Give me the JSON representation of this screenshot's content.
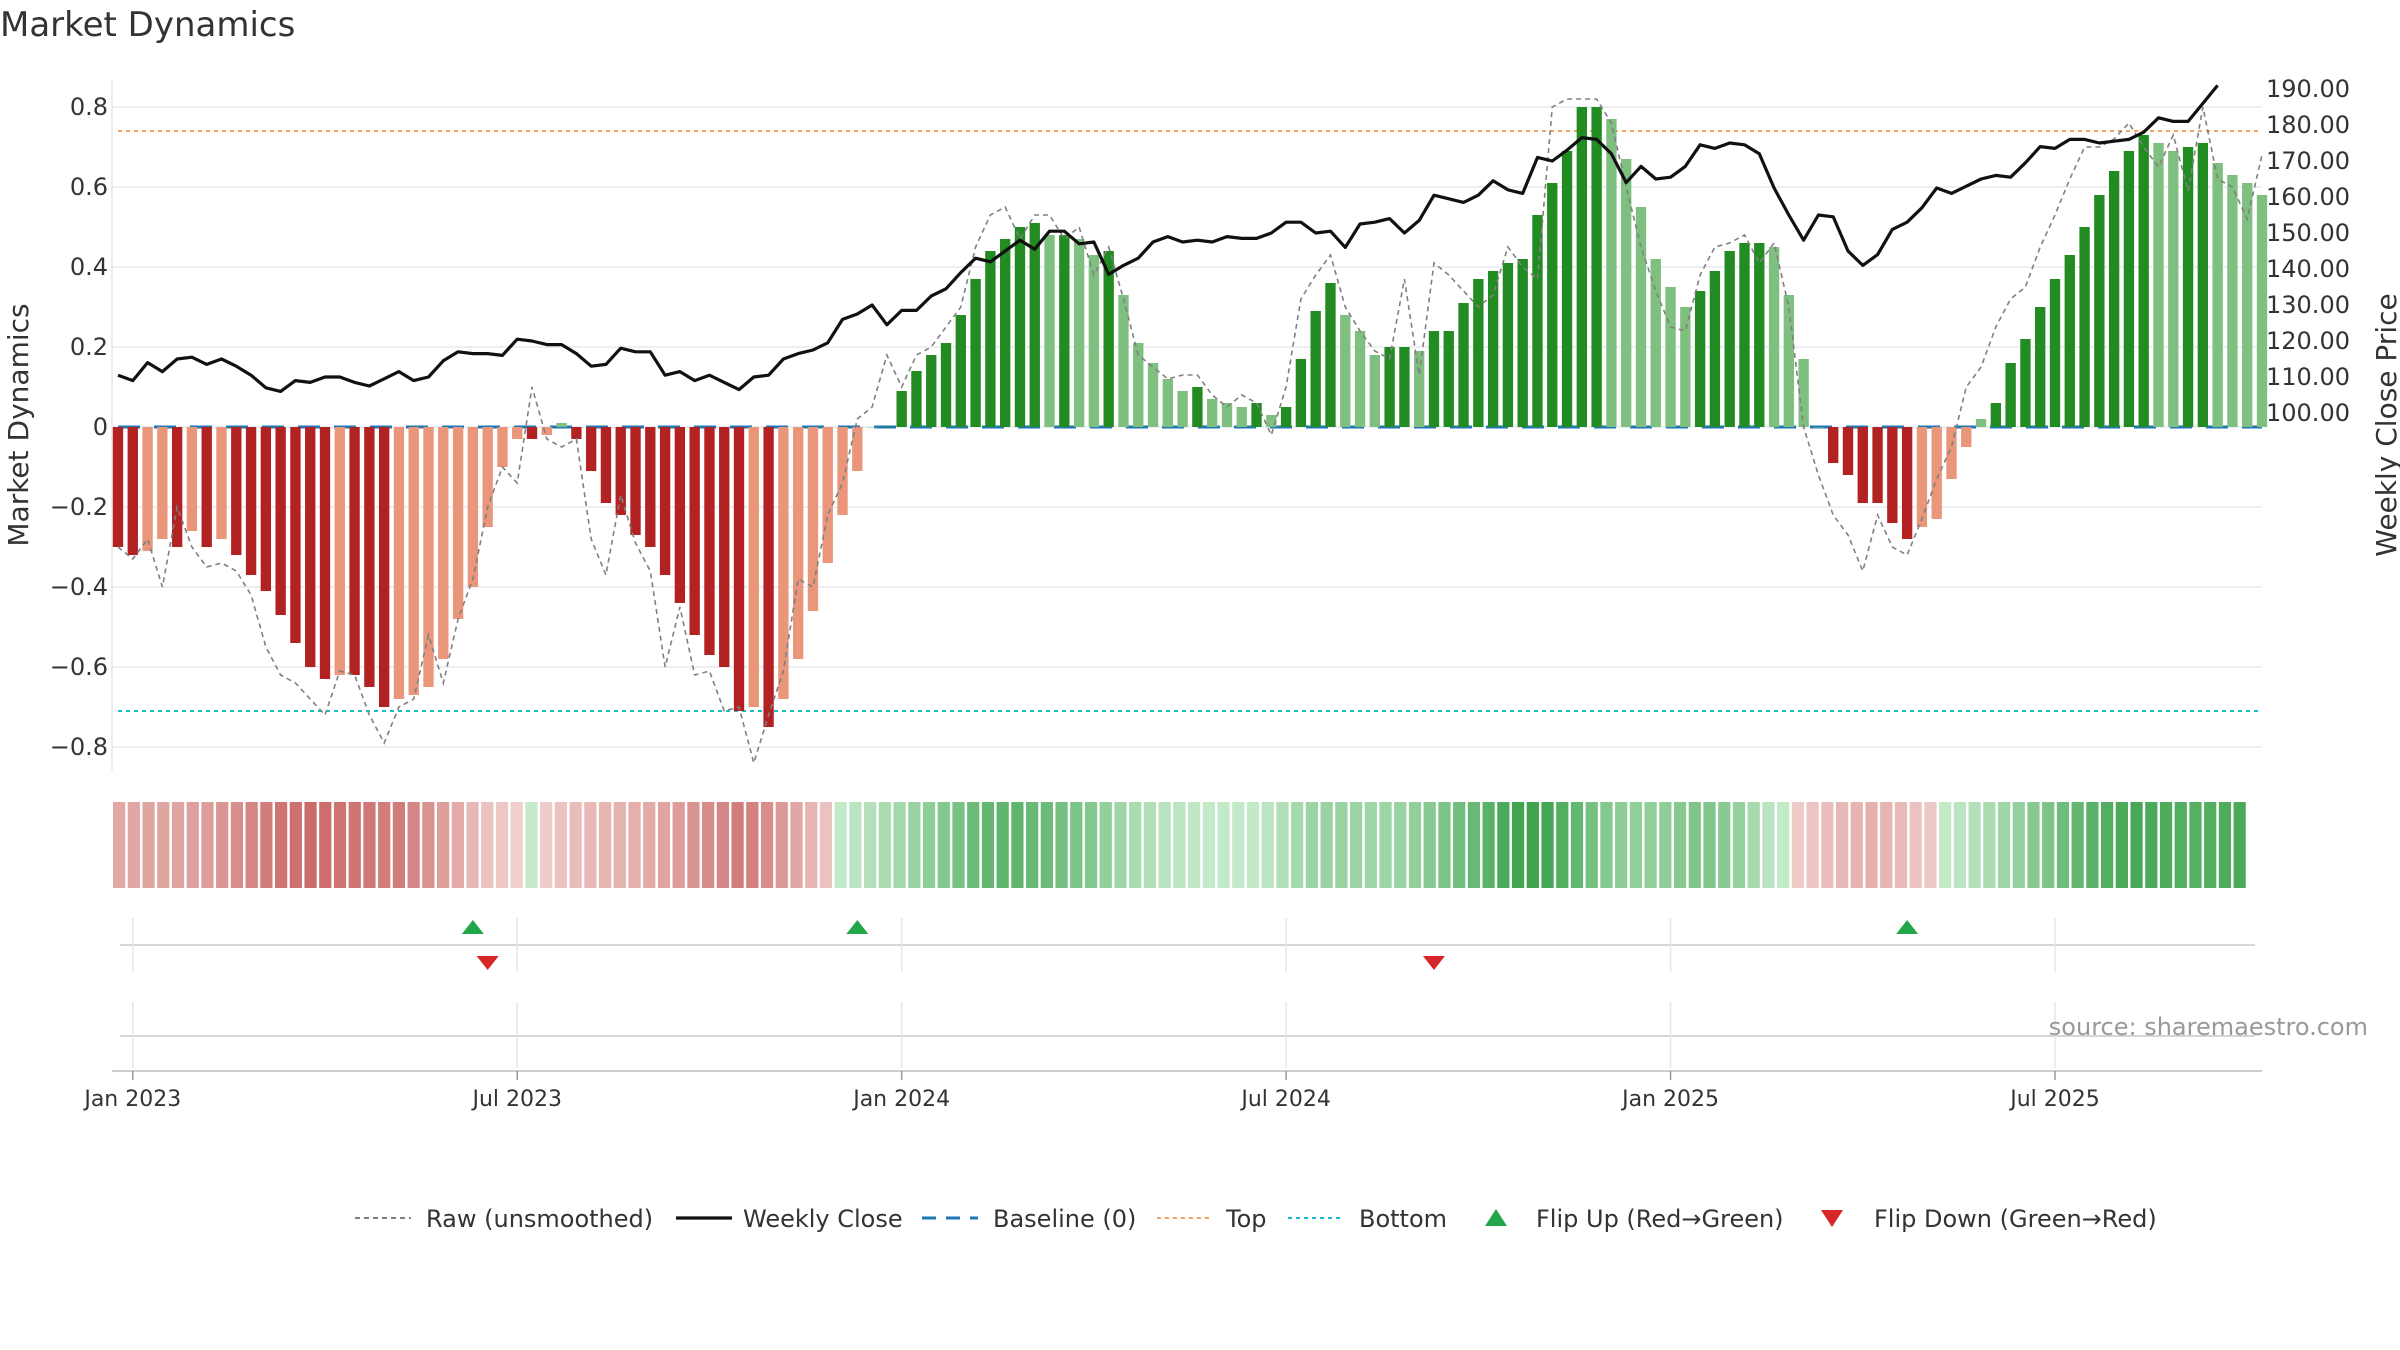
{
  "title": "Market Dynamics",
  "source": "source: sharemaestro.com",
  "colors": {
    "dark_green": "#228b22",
    "light_green": "#7fbf7f",
    "dark_red": "#b22222",
    "light_red": "#e9967a",
    "raw": "#808080",
    "close": "#111111",
    "baseline": "#1f77b4",
    "top": "#f4a460",
    "bottom": "#17becf",
    "flip_up": "#22a64a",
    "flip_down": "#d62728",
    "source": "#999999"
  },
  "chart_data": {
    "type": "bar",
    "title": "Market Dynamics",
    "ylabel_left": "Market Dynamics",
    "ylabel_right": "Weekly Close Price",
    "ylim_left": [
      -0.85,
      0.8
    ],
    "ylim_right": [
      100,
      192
    ],
    "yticks_left": [
      "0.8",
      "0.6",
      "0.4",
      "0.2",
      "0",
      "−0.2",
      "−0.4",
      "−0.6",
      "−0.8"
    ],
    "yticks_right": [
      "190.00",
      "180.00",
      "170.00",
      "160.00",
      "150.00",
      "140.00",
      "130.00",
      "120.00",
      "110.00",
      "100.00"
    ],
    "xticks": [
      {
        "label": "Jan 2023",
        "week": 1
      },
      {
        "label": "Jul 2023",
        "week": 27
      },
      {
        "label": "Jan 2024",
        "week": 53
      },
      {
        "label": "Jul 2024",
        "week": 79
      },
      {
        "label": "Jan 2025",
        "week": 105
      },
      {
        "label": "Jul 2025",
        "week": 131
      }
    ],
    "first_week": "2022-12-26",
    "top_line": 0.74,
    "bottom_line": -0.71,
    "baseline": 0,
    "dynamics": [
      -0.3,
      -0.32,
      -0.31,
      -0.28,
      -0.3,
      -0.26,
      -0.3,
      -0.28,
      -0.32,
      -0.37,
      -0.41,
      -0.47,
      -0.54,
      -0.6,
      -0.63,
      -0.62,
      -0.62,
      -0.65,
      -0.7,
      -0.68,
      -0.67,
      -0.65,
      -0.58,
      -0.48,
      -0.4,
      -0.25,
      -0.1,
      -0.03,
      -0.03,
      -0.02,
      0.01,
      -0.03,
      -0.11,
      -0.19,
      -0.22,
      -0.27,
      -0.3,
      -0.37,
      -0.44,
      -0.52,
      -0.57,
      -0.6,
      -0.71,
      -0.7,
      -0.75,
      -0.68,
      -0.58,
      -0.46,
      -0.34,
      -0.22,
      -0.11,
      0.0,
      0.0,
      0.09,
      0.14,
      0.18,
      0.21,
      0.28,
      0.37,
      0.44,
      0.47,
      0.5,
      0.51,
      0.48,
      0.48,
      0.47,
      0.43,
      0.44,
      0.33,
      0.21,
      0.16,
      0.12,
      0.09,
      0.1,
      0.07,
      0.06,
      0.05,
      0.06,
      0.03,
      0.05,
      0.17,
      0.29,
      0.36,
      0.28,
      0.24,
      0.18,
      0.2,
      0.2,
      0.19,
      0.24,
      0.24,
      0.31,
      0.37,
      0.39,
      0.41,
      0.42,
      0.53,
      0.61,
      0.69,
      0.8,
      0.8,
      0.77,
      0.67,
      0.55,
      0.42,
      0.35,
      0.3,
      0.34,
      0.39,
      0.44,
      0.46,
      0.46,
      0.45,
      0.33,
      0.17,
      0.0,
      -0.09,
      -0.12,
      -0.19,
      -0.19,
      -0.24,
      -0.28,
      -0.25,
      -0.23,
      -0.13,
      -0.05,
      0.02,
      0.06,
      0.16,
      0.22,
      0.3,
      0.37,
      0.43,
      0.5,
      0.58,
      0.64,
      0.69,
      0.73,
      0.71,
      0.69,
      0.7,
      0.71,
      0.66,
      0.63,
      0.61,
      0.58
    ],
    "raw": [
      -0.3,
      -0.33,
      -0.28,
      -0.4,
      -0.2,
      -0.3,
      -0.35,
      -0.34,
      -0.36,
      -0.42,
      -0.55,
      -0.62,
      -0.64,
      -0.68,
      -0.72,
      -0.61,
      -0.62,
      -0.72,
      -0.79,
      -0.7,
      -0.68,
      -0.52,
      -0.64,
      -0.48,
      -0.38,
      -0.2,
      -0.1,
      -0.14,
      0.1,
      -0.03,
      -0.05,
      -0.03,
      -0.28,
      -0.37,
      -0.17,
      -0.29,
      -0.36,
      -0.6,
      -0.45,
      -0.62,
      -0.61,
      -0.71,
      -0.7,
      -0.84,
      -0.72,
      -0.61,
      -0.38,
      -0.4,
      -0.22,
      -0.14,
      0.02,
      0.05,
      0.18,
      0.1,
      0.18,
      0.2,
      0.25,
      0.3,
      0.45,
      0.53,
      0.55,
      0.47,
      0.53,
      0.53,
      0.47,
      0.5,
      0.38,
      0.45,
      0.32,
      0.18,
      0.15,
      0.12,
      0.13,
      0.13,
      0.08,
      0.05,
      0.08,
      0.06,
      -0.02,
      0.1,
      0.32,
      0.38,
      0.43,
      0.3,
      0.24,
      0.19,
      0.17,
      0.37,
      0.13,
      0.41,
      0.38,
      0.34,
      0.3,
      0.33,
      0.45,
      0.4,
      0.37,
      0.8,
      0.82,
      0.82,
      0.82,
      0.76,
      0.6,
      0.45,
      0.34,
      0.25,
      0.24,
      0.38,
      0.45,
      0.46,
      0.48,
      0.41,
      0.46,
      0.3,
      0.0,
      -0.12,
      -0.22,
      -0.27,
      -0.36,
      -0.22,
      -0.3,
      -0.32,
      -0.23,
      -0.13,
      -0.05,
      0.1,
      0.15,
      0.25,
      0.32,
      0.35,
      0.45,
      0.53,
      0.62,
      0.7,
      0.7,
      0.72,
      0.76,
      0.7,
      0.65,
      0.73,
      0.59,
      0.8,
      0.62,
      0.6,
      0.52,
      0.68
    ],
    "close": [
      110.5,
      109.0,
      114.0,
      111.5,
      115.0,
      115.5,
      113.5,
      115.0,
      113.0,
      110.5,
      107.0,
      106.0,
      109.0,
      108.5,
      110.0,
      110.0,
      108.5,
      107.5,
      109.5,
      111.5,
      109.0,
      110.0,
      114.5,
      117.0,
      116.5,
      116.5,
      116.0,
      120.5,
      120.0,
      119.0,
      119.0,
      116.5,
      113.0,
      113.5,
      118.0,
      117.0,
      117.0,
      110.5,
      111.5,
      109.0,
      110.5,
      108.5,
      106.5,
      110.0,
      110.5,
      115.0,
      116.5,
      117.5,
      119.5,
      126.0,
      127.5,
      130.0,
      124.5,
      128.5,
      128.5,
      132.5,
      134.5,
      139.0,
      143.0,
      142.0,
      145.0,
      148.0,
      145.5,
      150.5,
      150.5,
      147.0,
      147.5,
      138.5,
      141.0,
      143.0,
      147.5,
      149.0,
      147.5,
      148.0,
      147.5,
      149.0,
      148.5,
      148.5,
      150.0,
      153.0,
      153.0,
      150.0,
      150.5,
      146.0,
      152.5,
      153.0,
      154.0,
      150.0,
      153.5,
      160.5,
      159.5,
      158.5,
      160.5,
      164.5,
      162.0,
      161.0,
      171.0,
      170.0,
      173.0,
      176.5,
      176.0,
      172.0,
      164.0,
      168.5,
      165.0,
      165.5,
      168.5,
      174.5,
      173.5,
      175.0,
      174.5,
      172.0,
      162.5,
      155.0,
      148.0,
      155.0,
      154.5,
      145.0,
      141.0,
      144.0,
      151.0,
      153.0,
      157.0,
      162.5,
      161.0,
      163.0,
      165.0,
      166.0,
      165.5,
      169.5,
      174.0,
      173.5,
      176.0,
      176.0,
      175.0,
      175.5,
      176.0,
      178.0,
      182.0,
      181.0,
      181.0,
      186.0,
      191.0
    ],
    "momentum": [
      -0.3,
      -0.3,
      -0.32,
      -0.32,
      -0.32,
      -0.34,
      -0.36,
      -0.4,
      -0.45,
      -0.5,
      -0.55,
      -0.6,
      -0.62,
      -0.65,
      -0.64,
      -0.6,
      -0.6,
      -0.58,
      -0.55,
      -0.55,
      -0.5,
      -0.42,
      -0.35,
      -0.28,
      -0.2,
      -0.14,
      -0.1,
      -0.06,
      0.04,
      -0.08,
      -0.14,
      -0.17,
      -0.19,
      -0.21,
      -0.23,
      -0.25,
      -0.28,
      -0.32,
      -0.36,
      -0.42,
      -0.46,
      -0.5,
      -0.55,
      -0.52,
      -0.45,
      -0.38,
      -0.3,
      -0.22,
      -0.14,
      0.06,
      0.1,
      0.15,
      0.2,
      0.24,
      0.3,
      0.36,
      0.42,
      0.48,
      0.55,
      0.6,
      0.62,
      0.62,
      0.58,
      0.55,
      0.5,
      0.46,
      0.42,
      0.34,
      0.26,
      0.2,
      0.16,
      0.12,
      0.1,
      0.08,
      0.06,
      0.06,
      0.05,
      0.06,
      0.1,
      0.16,
      0.22,
      0.28,
      0.3,
      0.3,
      0.28,
      0.26,
      0.27,
      0.3,
      0.34,
      0.4,
      0.46,
      0.52,
      0.58,
      0.66,
      0.74,
      0.8,
      0.82,
      0.78,
      0.7,
      0.6,
      0.5,
      0.42,
      0.36,
      0.34,
      0.34,
      0.36,
      0.4,
      0.44,
      0.44,
      0.4,
      0.32,
      0.22,
      0.1,
      0.06,
      -0.08,
      -0.12,
      -0.16,
      -0.2,
      -0.22,
      -0.24,
      -0.22,
      -0.18,
      -0.14,
      -0.1,
      0.06,
      0.1,
      0.15,
      0.2,
      0.26,
      0.32,
      0.4,
      0.46,
      0.54,
      0.6,
      0.66,
      0.7,
      0.74,
      0.76,
      0.74,
      0.72,
      0.7,
      0.68,
      0.7,
      0.72,
      0.74
    ],
    "flip_up_weeks": [
      24,
      50,
      121
    ],
    "flip_down_weeks": [
      25,
      89
    ]
  },
  "legend": [
    {
      "label": "Raw (unsmoothed)",
      "kind": "raw"
    },
    {
      "label": "Weekly Close",
      "kind": "close"
    },
    {
      "label": "Baseline (0)",
      "kind": "baseline"
    },
    {
      "label": "Top",
      "kind": "top"
    },
    {
      "label": "Bottom",
      "kind": "bottom"
    },
    {
      "label": "Flip Up (Red→Green)",
      "kind": "flip_up"
    },
    {
      "label": "Flip Down (Green→Red)",
      "kind": "flip_down"
    }
  ]
}
